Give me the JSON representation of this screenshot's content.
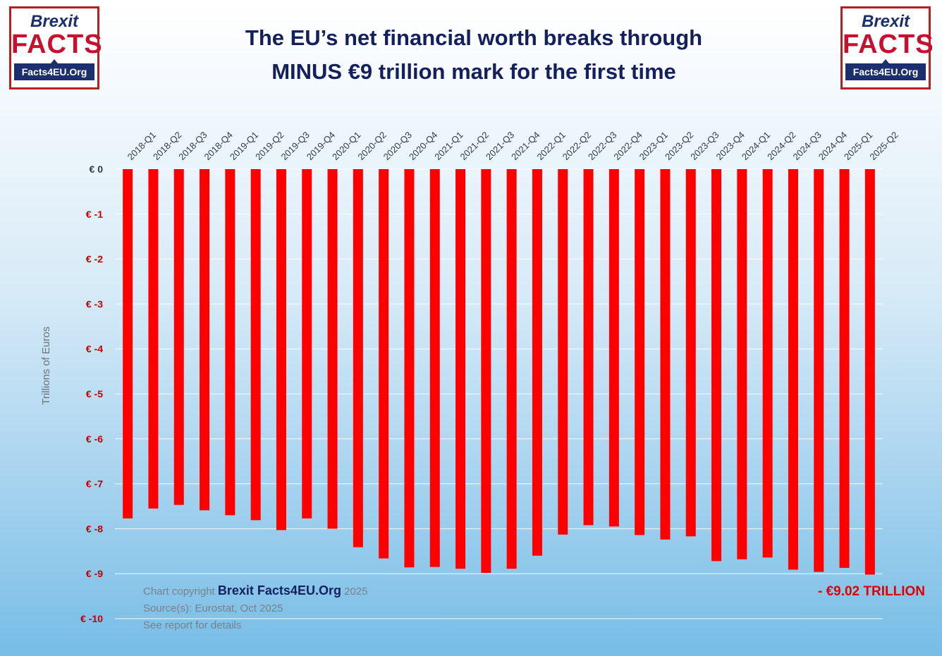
{
  "logo": {
    "brexit": "Brexit",
    "facts": "FACTS",
    "site": "Facts4EU.Org"
  },
  "title_lines": [
    "The EU’s net financial worth breaks through",
    "MINUS €9 trillion mark for the first time"
  ],
  "footer": {
    "copyright_prefix": "Chart copyright",
    "brand": "Brexit Facts4EU.Org",
    "year": "2025",
    "source": "Source(s): Eurostat, Oct 2025",
    "note": "See report for details"
  },
  "colors": {
    "bar": "#ff0000",
    "tick_negative": "#c00000",
    "title": "#14205e"
  },
  "chart_data": {
    "type": "bar",
    "title": "The EU’s net financial worth breaks through MINUS €9 trillion mark for the first time",
    "xlabel": "",
    "ylabel": "Trillions of Euros",
    "ylim": [
      -10,
      0
    ],
    "y_ticks": [
      0,
      -1,
      -2,
      -3,
      -4,
      -5,
      -6,
      -7,
      -8,
      -9,
      -10
    ],
    "y_tick_labels": [
      "€ 0",
      "€ -1",
      "€ -2",
      "€ -3",
      "€ -4",
      "€ -5",
      "€ -6",
      "€ -7",
      "€ -8",
      "€ -9",
      "€ -10"
    ],
    "grid": true,
    "categories": [
      "2018-Q1",
      "2018-Q2",
      "2018-Q3",
      "2018-Q4",
      "2019-Q1",
      "2019-Q2",
      "2019-Q3",
      "2019-Q4",
      "2020-Q1",
      "2020-Q2",
      "2020-Q3",
      "2020-Q4",
      "2021-Q1",
      "2021-Q2",
      "2021-Q3",
      "2021-Q4",
      "2022-Q1",
      "2022-Q2",
      "2022-Q3",
      "2022-Q4",
      "2023-Q1",
      "2023-Q2",
      "2023-Q3",
      "2023-Q4",
      "2024-Q1",
      "2024-Q2",
      "2024-Q3",
      "2024-Q4",
      "2025-Q1",
      "2025-Q2"
    ],
    "values": [
      -7.77,
      -7.55,
      -7.47,
      -7.59,
      -7.7,
      -7.81,
      -8.03,
      -7.77,
      -8.0,
      -8.41,
      -8.66,
      -8.86,
      -8.85,
      -8.89,
      -8.98,
      -8.89,
      -8.6,
      -8.13,
      -7.92,
      -7.95,
      -8.14,
      -8.24,
      -8.17,
      -8.72,
      -8.68,
      -8.64,
      -8.91,
      -8.96,
      -8.87,
      -9.02
    ],
    "annotation": "- €9.02 TRILLION"
  }
}
